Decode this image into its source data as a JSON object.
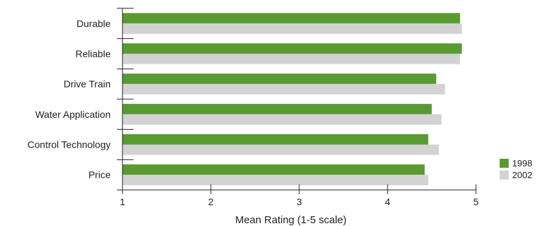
{
  "chart_data": {
    "type": "bar",
    "orientation": "horizontal",
    "title": "",
    "xlabel": "Mean Rating (1-5 scale)",
    "ylabel": "",
    "categories": [
      "Durable",
      "Reliable",
      "Drive Train",
      "Water Application",
      "Control Technology",
      "Price"
    ],
    "series": [
      {
        "name": "1998",
        "color": "#5a9a32",
        "values": [
          4.82,
          4.84,
          4.55,
          4.5,
          4.46,
          4.42
        ]
      },
      {
        "name": "2002",
        "color": "#d3d3d3",
        "values": [
          4.84,
          4.82,
          4.65,
          4.61,
          4.58,
          4.46
        ]
      }
    ],
    "xlim": [
      1,
      5
    ],
    "xticks": [
      1,
      2,
      3,
      4,
      5
    ],
    "grid": false,
    "legend_position": "right"
  }
}
